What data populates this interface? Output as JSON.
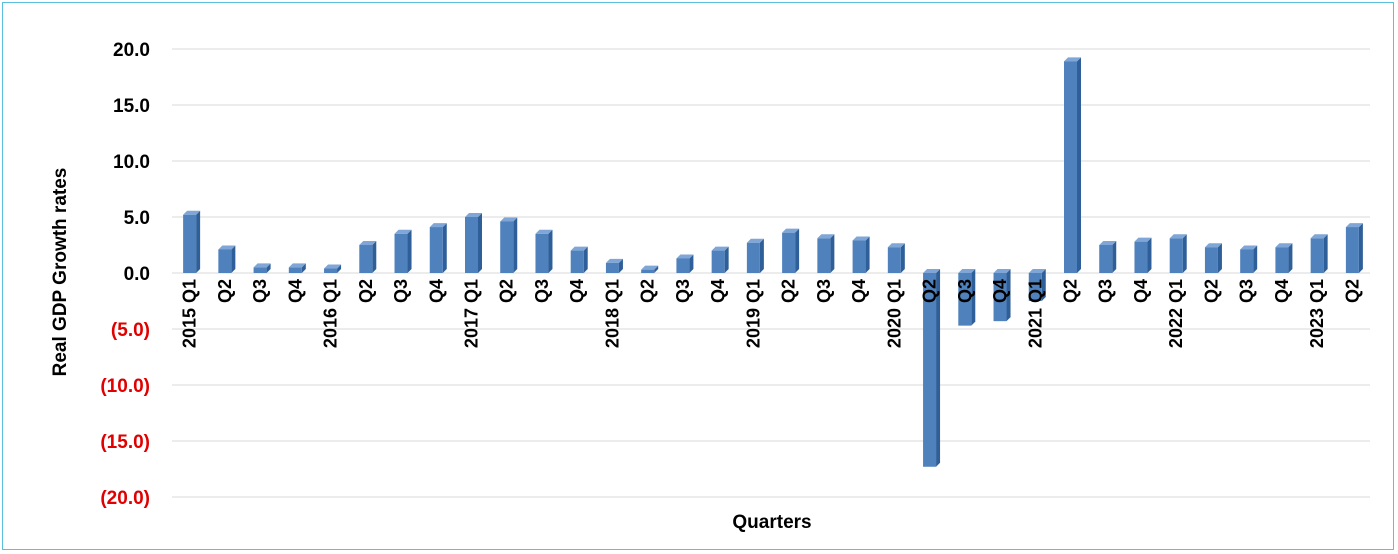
{
  "chart_data": {
    "type": "bar",
    "title": "",
    "xlabel": "Quarters",
    "ylabel": "Real GDP Growth rates",
    "ylim": [
      -20,
      20
    ],
    "yticks": [
      20,
      15,
      10,
      5,
      0,
      -5,
      -10,
      -15,
      -20
    ],
    "ytick_labels": [
      "20.0",
      "15.0",
      "10.0",
      "5.0",
      "0.0",
      "(5.0)",
      "(10.0)",
      "(15.0)",
      "(20.0)"
    ],
    "categories": [
      "2015 Q1",
      "Q2",
      "Q3",
      "Q4",
      "2016 Q1",
      "Q2",
      "Q3",
      "Q4",
      "2017 Q1",
      "Q2",
      "Q3",
      "Q4",
      "2018 Q1",
      "Q2",
      "Q3",
      "Q4",
      "2019 Q1",
      "Q2",
      "Q3",
      "Q4",
      "2020 Q1",
      "Q2",
      "Q3",
      "Q4",
      "2021 Q1",
      "Q2",
      "Q3",
      "Q4",
      "2022 Q1",
      "Q2",
      "Q3",
      "Q4",
      "2023 Q1",
      "Q2"
    ],
    "values": [
      5.2,
      2.1,
      0.5,
      0.5,
      0.4,
      2.5,
      3.5,
      4.1,
      5.0,
      4.6,
      3.5,
      2.0,
      0.9,
      0.3,
      1.3,
      2.0,
      2.7,
      3.6,
      3.1,
      2.9,
      2.3,
      -17.3,
      -4.7,
      -4.3,
      -2.5,
      18.9,
      2.5,
      2.8,
      3.1,
      2.3,
      2.1,
      2.3,
      3.1,
      4.1
    ],
    "grid": true,
    "legend": "none",
    "colors": {
      "bar": "#4f81bd",
      "positive_tick": "#000000",
      "negative_tick": "#e00000",
      "gridline": "#d9d9d9",
      "border": "#5bc0de"
    }
  }
}
